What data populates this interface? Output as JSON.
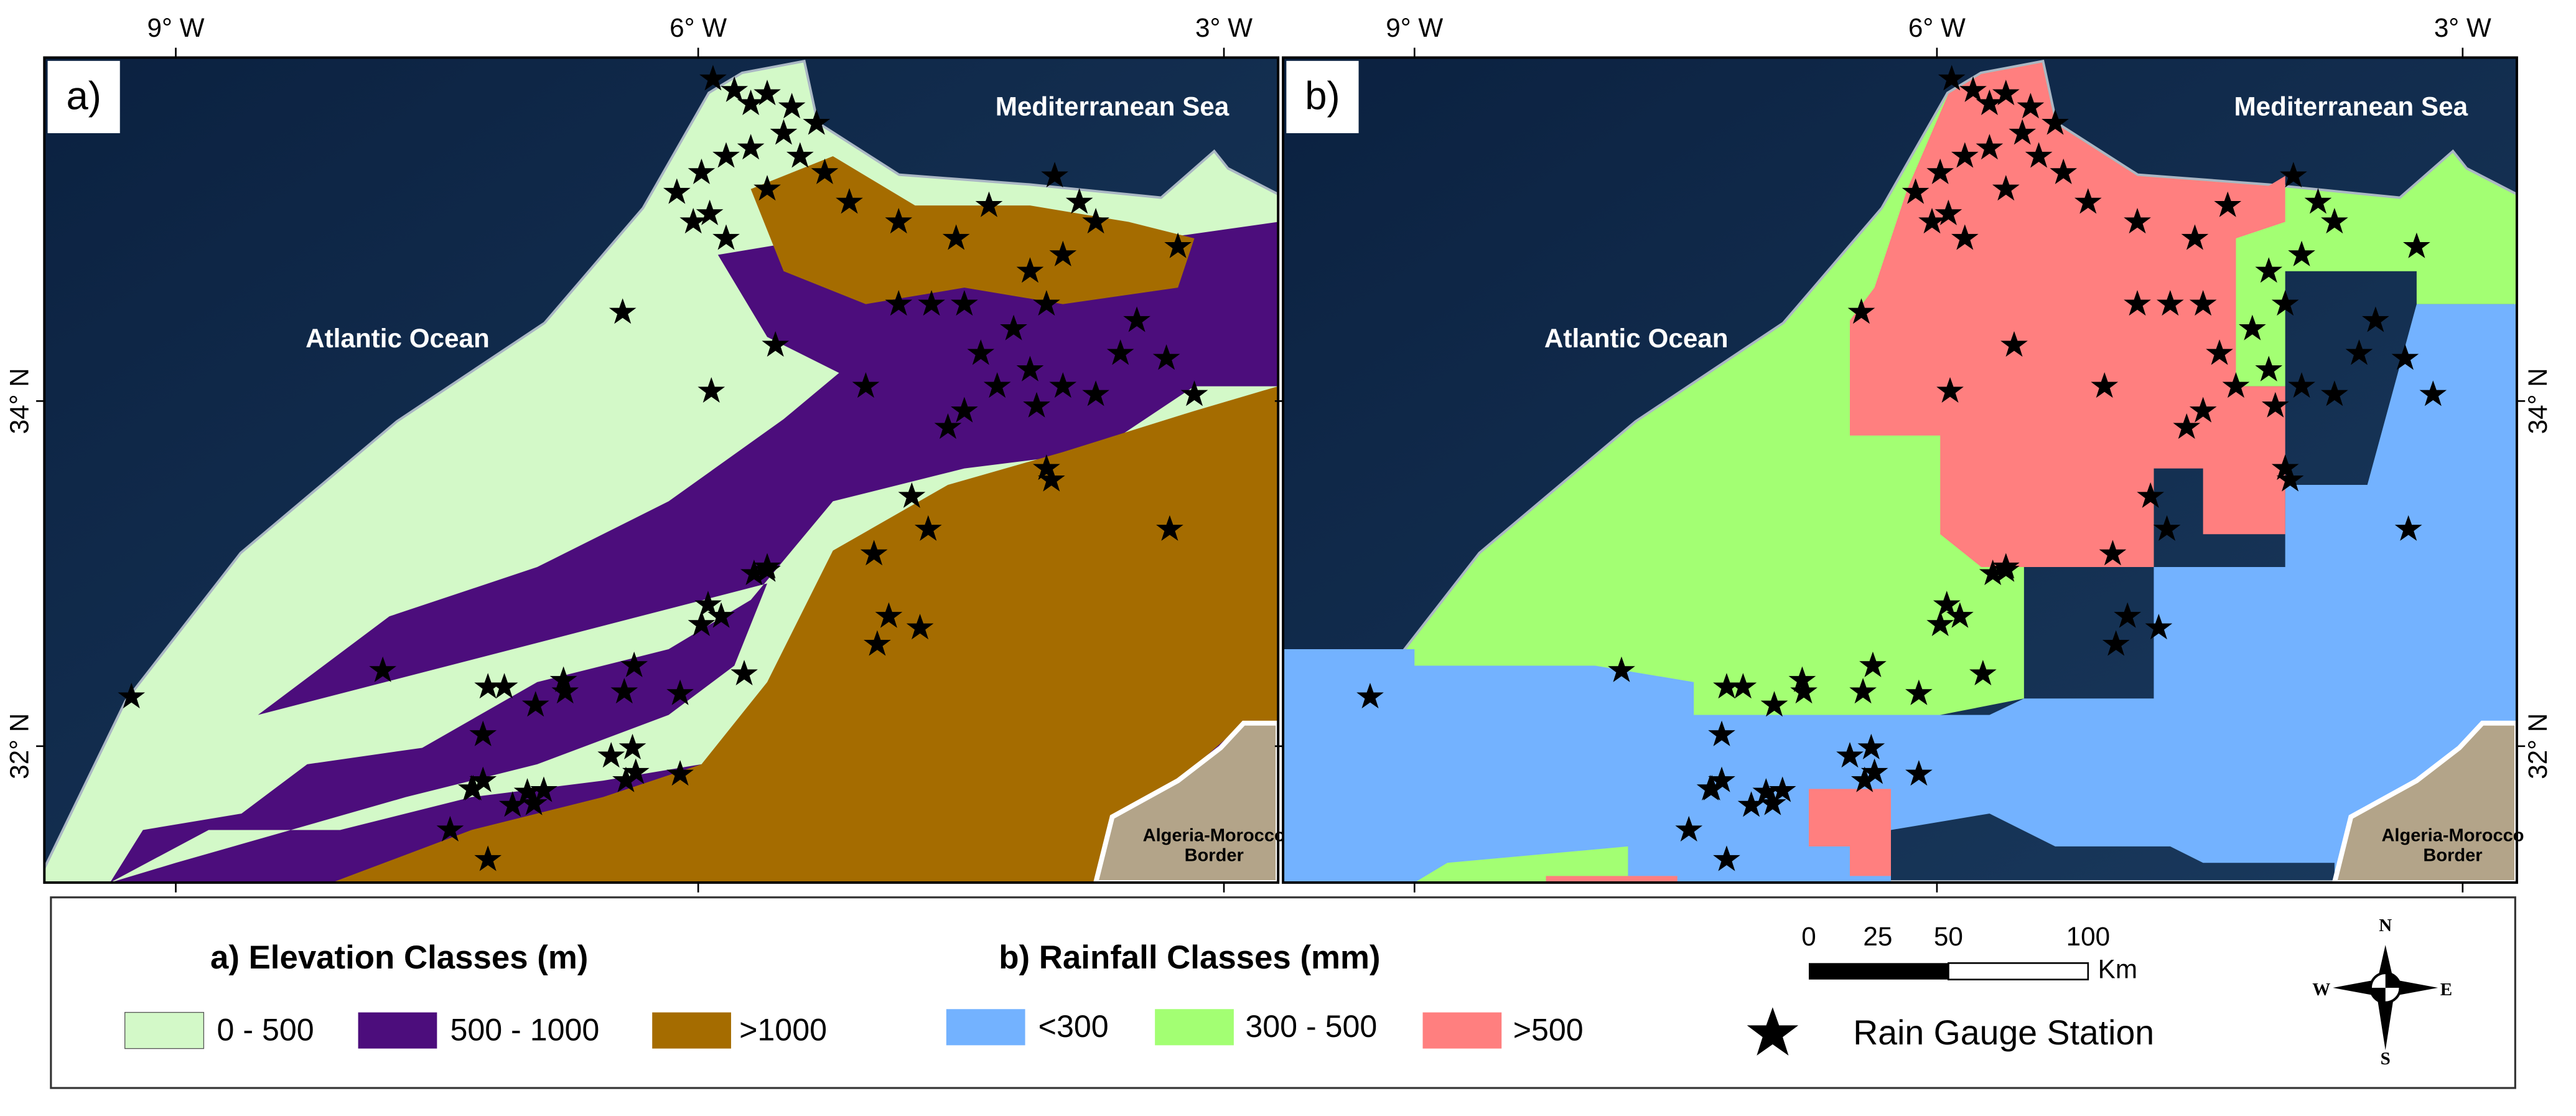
{
  "panels": [
    {
      "label": "a)",
      "sea_west": "Atlantic Ocean",
      "sea_north": "Mediterranean Sea",
      "border": [
        "Algeria-Morocco",
        "Border"
      ]
    },
    {
      "label": "b)",
      "sea_west": "Atlantic Ocean",
      "sea_north": "Mediterranean Sea",
      "border": [
        "Algeria-Morocco",
        "Border"
      ]
    }
  ],
  "axes": {
    "longitude": [
      "9° W",
      "6° W",
      "3° W"
    ],
    "latitude": [
      "34° N",
      "32° N"
    ]
  },
  "legend": {
    "elevation": {
      "title": "a) Elevation Classes (m)",
      "classes": [
        "0 - 500",
        "500 - 1000",
        ">1000"
      ]
    },
    "rainfall": {
      "title": "b) Rainfall Classes (mm)",
      "classes": [
        "<300",
        "300 - 500",
        ">500"
      ]
    },
    "scale": {
      "ticks": [
        "0",
        "25",
        "50",
        "100"
      ],
      "unit": "Km"
    },
    "station": "Rain Gauge Station",
    "compass": [
      "N",
      "S",
      "E",
      "W"
    ]
  }
}
